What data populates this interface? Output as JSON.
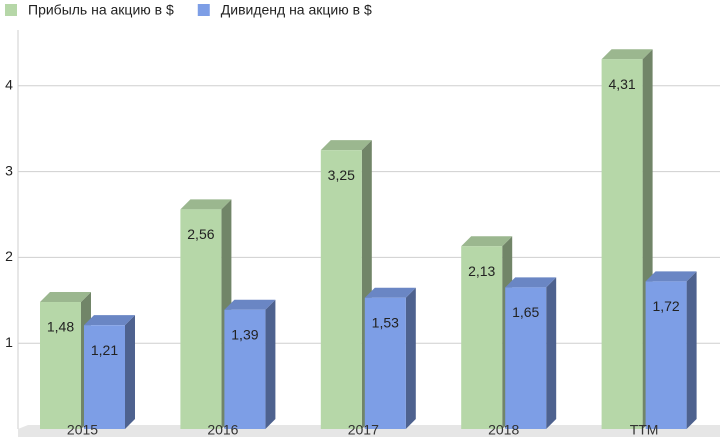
{
  "chart_data": {
    "type": "bar3d",
    "categories": [
      "2015",
      "2016",
      "2017",
      "2018",
      "TTM"
    ],
    "series": [
      {
        "name": "Прибыль на акцию в $",
        "color": "#b6d7a8",
        "values": [
          1.48,
          2.56,
          3.25,
          2.13,
          4.31
        ],
        "value_labels": [
          "1,48",
          "2,56",
          "3,25",
          "2,13",
          "4,31"
        ]
      },
      {
        "name": "Дивиденд на акцию в $",
        "color": "#7d9ee6",
        "values": [
          1.21,
          1.39,
          1.53,
          1.65,
          1.72
        ],
        "value_labels": [
          "1,21",
          "1,39",
          "1,53",
          "1,65",
          "1,72"
        ]
      }
    ],
    "ylim": [
      0,
      5
    ],
    "yticks": [
      1,
      2,
      3,
      4
    ],
    "grid": true,
    "legend": "top-left"
  }
}
